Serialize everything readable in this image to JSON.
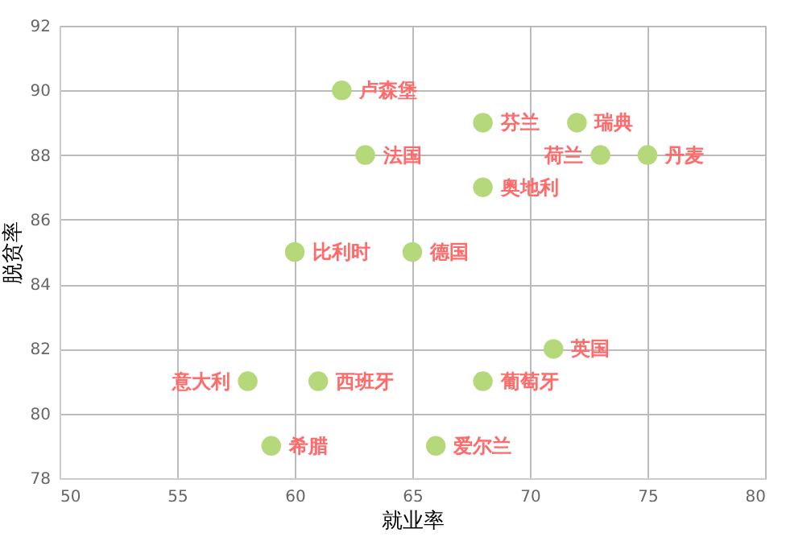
{
  "chart_data": {
    "type": "scatter",
    "xlabel": "就业率",
    "ylabel": "脱贫率",
    "xlim": [
      50,
      80
    ],
    "xticks": [
      50,
      55,
      60,
      65,
      70,
      75,
      80
    ],
    "ylim": [
      78,
      92
    ],
    "yticks": [
      78,
      80,
      82,
      84,
      86,
      88,
      90,
      92
    ],
    "grid": true,
    "marker": "circle",
    "series": [
      {
        "color": "#b5d87a",
        "x": [
          62,
          68,
          72,
          63,
          73,
          75,
          68,
          60,
          65,
          71,
          58,
          61,
          68,
          59,
          66
        ],
        "values": [
          90,
          89,
          89,
          88,
          88,
          88,
          87,
          85,
          85,
          82,
          81,
          81,
          81,
          79,
          79
        ]
      }
    ],
    "annotations": [
      {
        "text": "卢森堡",
        "x": 62,
        "y": 90
      },
      {
        "text": "芬兰",
        "x": 68,
        "y": 89
      },
      {
        "text": "瑞典",
        "x": 72,
        "y": 89
      },
      {
        "text": "法国",
        "x": 63,
        "y": 88
      },
      {
        "text": "荷兰",
        "x": 73,
        "y": 88
      },
      {
        "text": "丹麦",
        "x": 75,
        "y": 88
      },
      {
        "text": "奥地利",
        "x": 68,
        "y": 87
      },
      {
        "text": "比利时",
        "x": 60,
        "y": 85
      },
      {
        "text": "德国",
        "x": 65,
        "y": 85
      },
      {
        "text": "英国",
        "x": 71,
        "y": 82
      },
      {
        "text": "意大利",
        "x": 58,
        "y": 81
      },
      {
        "text": "西班牙",
        "x": 61,
        "y": 81
      },
      {
        "text": "葡萄牙",
        "x": 68,
        "y": 81
      },
      {
        "text": "希腊",
        "x": 59,
        "y": 79
      },
      {
        "text": "爱尔兰",
        "x": 66,
        "y": 79
      }
    ]
  }
}
